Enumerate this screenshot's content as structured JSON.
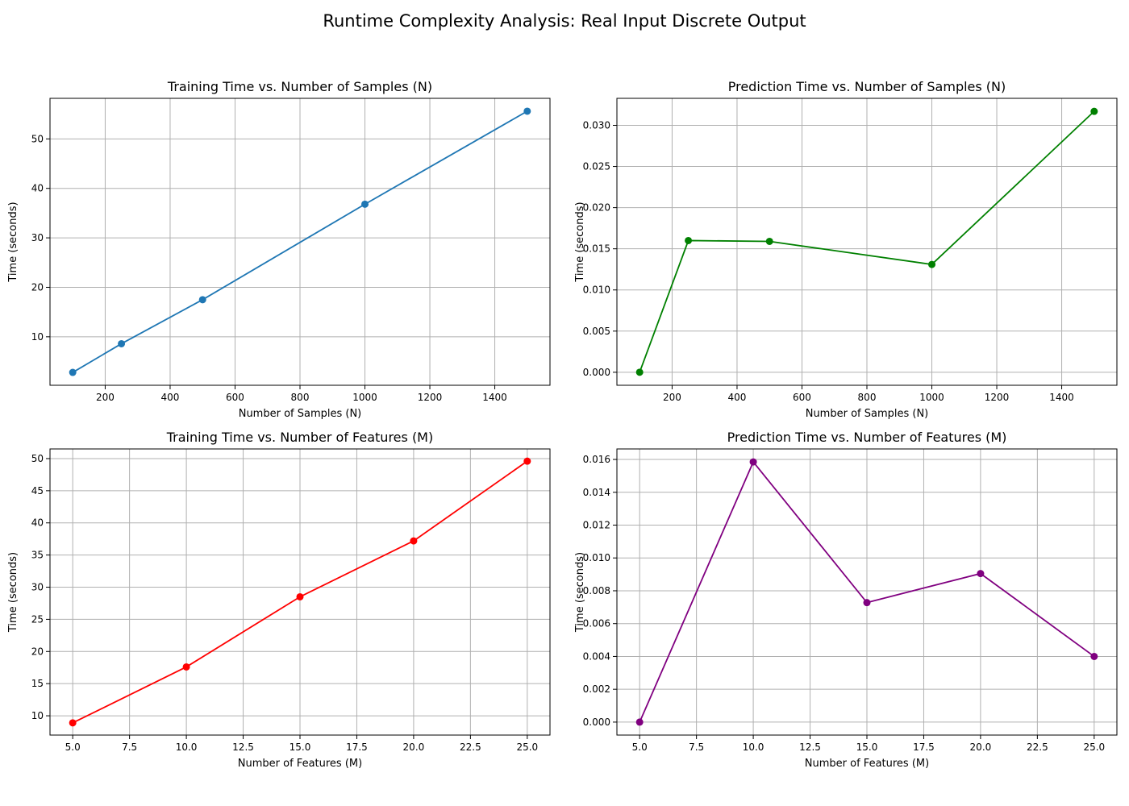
{
  "figure_title": "Runtime Complexity Analysis: Real Input Discrete Output",
  "chart_data": [
    {
      "type": "line",
      "title": "Training Time vs. Number of Samples (N)",
      "xlabel": "Number of Samples (N)",
      "ylabel": "Time (seconds)",
      "x": [
        100,
        250,
        500,
        1000,
        1500
      ],
      "series": [
        {
          "values": [
            2.8,
            8.6,
            17.5,
            36.8,
            55.6
          ],
          "color": "#1f77b4"
        }
      ],
      "xlim": [
        30,
        1570
      ],
      "ylim": [
        0.2,
        58.2
      ],
      "xticks": [
        200,
        400,
        600,
        800,
        1000,
        1200,
        1400
      ],
      "xtick_labels": [
        "200",
        "400",
        "600",
        "800",
        "1000",
        "1200",
        "1400"
      ],
      "yticks": [
        10,
        20,
        30,
        40,
        50
      ],
      "ytick_labels": [
        "10",
        "20",
        "30",
        "40",
        "50"
      ],
      "grid": true,
      "markers": "circle"
    },
    {
      "type": "line",
      "title": "Prediction Time vs. Number of Samples (N)",
      "xlabel": "Number of Samples (N)",
      "ylabel": "Time (seconds)",
      "x": [
        100,
        250,
        500,
        1000,
        1500
      ],
      "series": [
        {
          "values": [
            0.0,
            0.016,
            0.0159,
            0.0131,
            0.0317
          ],
          "color": "#008000"
        }
      ],
      "xlim": [
        30,
        1570
      ],
      "ylim": [
        -0.00158,
        0.03328
      ],
      "xticks": [
        200,
        400,
        600,
        800,
        1000,
        1200,
        1400
      ],
      "xtick_labels": [
        "200",
        "400",
        "600",
        "800",
        "1000",
        "1200",
        "1400"
      ],
      "yticks": [
        0.0,
        0.005,
        0.01,
        0.015,
        0.02,
        0.025,
        0.03
      ],
      "ytick_labels": [
        "0.000",
        "0.005",
        "0.010",
        "0.015",
        "0.020",
        "0.025",
        "0.030"
      ],
      "grid": true,
      "markers": "circle"
    },
    {
      "type": "line",
      "title": "Training Time vs. Number of Features (M)",
      "xlabel": "Number of Features (M)",
      "ylabel": "Time (seconds)",
      "x": [
        5,
        10,
        15,
        20,
        25
      ],
      "series": [
        {
          "values": [
            8.9,
            17.6,
            28.5,
            37.2,
            49.6
          ],
          "color": "#ff0000"
        }
      ],
      "xlim": [
        4,
        26
      ],
      "ylim": [
        7.0,
        51.5
      ],
      "xticks": [
        5,
        7.5,
        10,
        12.5,
        15,
        17.5,
        20,
        22.5,
        25
      ],
      "xtick_labels": [
        "5.0",
        "7.5",
        "10.0",
        "12.5",
        "15.0",
        "17.5",
        "20.0",
        "22.5",
        "25.0"
      ],
      "yticks": [
        10,
        15,
        20,
        25,
        30,
        35,
        40,
        45,
        50
      ],
      "ytick_labels": [
        "10",
        "15",
        "20",
        "25",
        "30",
        "35",
        "40",
        "45",
        "50"
      ],
      "grid": true,
      "markers": "circle"
    },
    {
      "type": "line",
      "title": "Prediction Time vs. Number of Features (M)",
      "xlabel": "Number of Features (M)",
      "ylabel": "Time (seconds)",
      "x": [
        5,
        10,
        15,
        20,
        25
      ],
      "series": [
        {
          "values": [
            0.0,
            0.01585,
            0.00728,
            0.00905,
            0.004
          ],
          "color": "#800080"
        }
      ],
      "xlim": [
        4,
        26
      ],
      "ylim": [
        -0.00079,
        0.01664
      ],
      "xticks": [
        5,
        7.5,
        10,
        12.5,
        15,
        17.5,
        20,
        22.5,
        25
      ],
      "xtick_labels": [
        "5.0",
        "7.5",
        "10.0",
        "12.5",
        "15.0",
        "17.5",
        "20.0",
        "22.5",
        "25.0"
      ],
      "yticks": [
        0.0,
        0.002,
        0.004,
        0.006,
        0.008,
        0.01,
        0.012,
        0.014,
        0.016
      ],
      "ytick_labels": [
        "0.000",
        "0.002",
        "0.004",
        "0.006",
        "0.008",
        "0.010",
        "0.012",
        "0.014",
        "0.016"
      ],
      "grid": true,
      "markers": "circle"
    }
  ]
}
